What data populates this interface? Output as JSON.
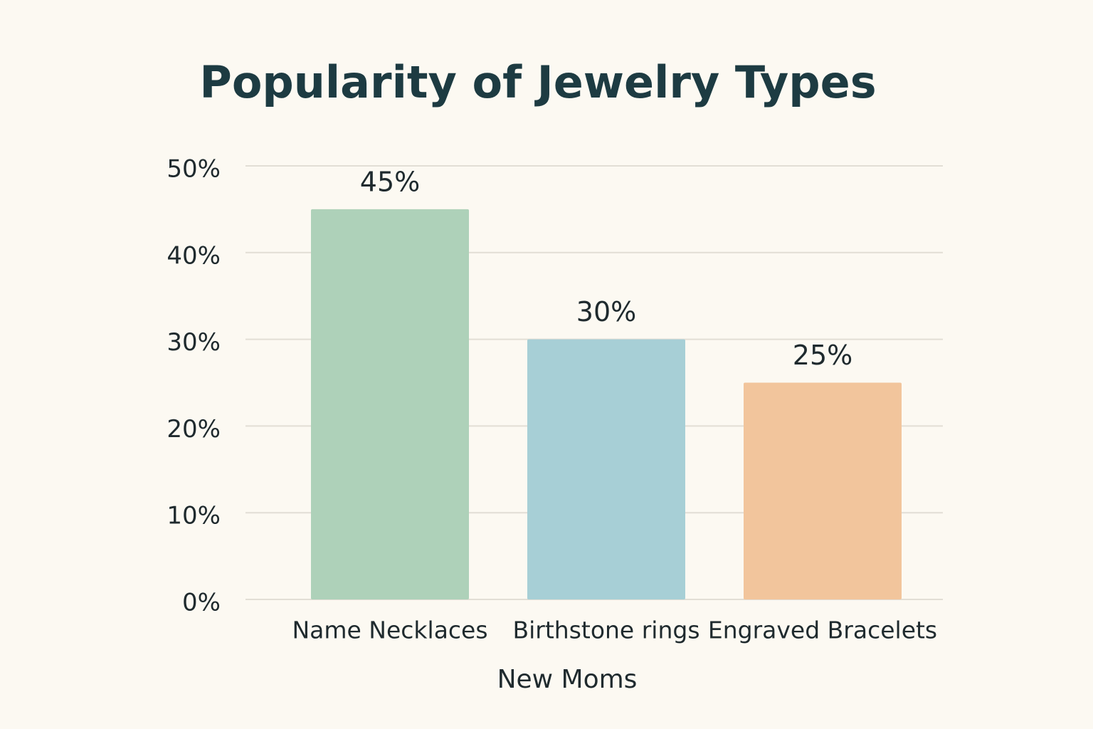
{
  "chart_data": {
    "type": "bar",
    "title": "Popularity of Jewelry Types",
    "categories": [
      "Name Necklaces",
      "Birthstone rings",
      "Engraved Bracelets"
    ],
    "values": [
      45,
      30,
      25
    ],
    "value_labels": [
      "45%",
      "30%",
      "25%"
    ],
    "colors": [
      "#aed1b9",
      "#a7cfd6",
      "#f2c59c"
    ],
    "x_label": "New Moms",
    "ylim": [
      0,
      50
    ],
    "yticks": [
      {
        "value": 0,
        "label": "0%"
      },
      {
        "value": 10,
        "label": "10%"
      },
      {
        "value": 20,
        "label": "20%"
      },
      {
        "value": 30,
        "label": "30%"
      },
      {
        "value": 40,
        "label": "40%"
      },
      {
        "value": 50,
        "label": "50%"
      }
    ],
    "grid": true
  }
}
